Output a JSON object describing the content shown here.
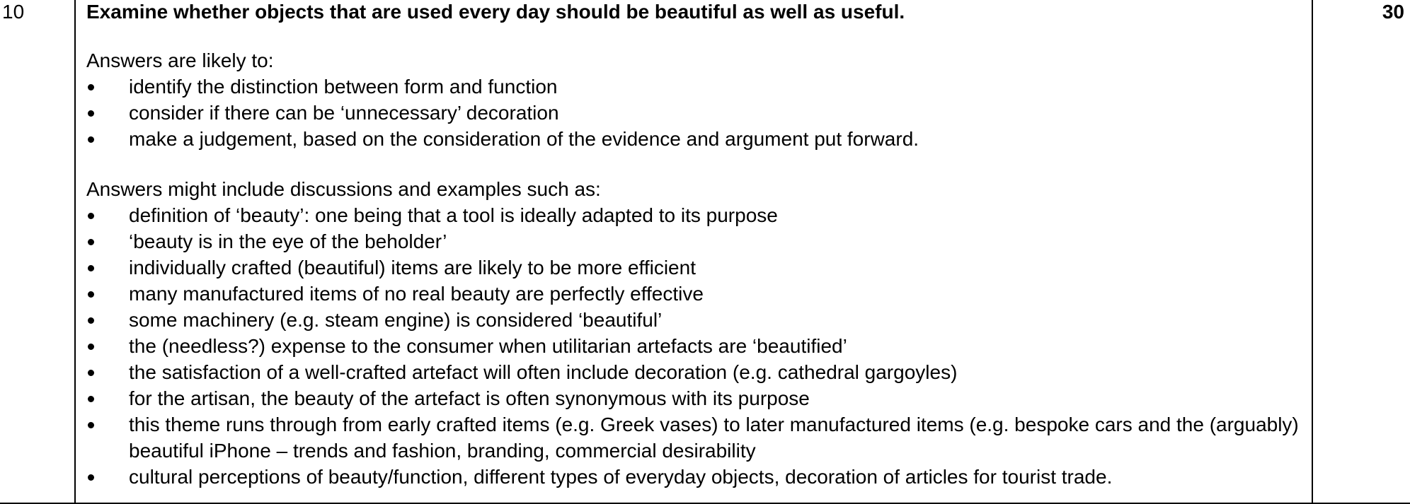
{
  "question_number": "10",
  "marks": "30",
  "question_text": "Examine whether objects that are used every day should be beautiful as well as useful.",
  "section1": {
    "intro": "Answers are likely to:",
    "items": [
      "identify the distinction between form and function",
      "consider if there can be ‘unnecessary’ decoration",
      "make a judgement, based on the consideration of the evidence and argument put forward."
    ]
  },
  "section2": {
    "intro": "Answers might include discussions and examples such as:",
    "items": [
      "definition of ‘beauty’: one being that a tool is ideally adapted to its purpose",
      "‘beauty is in the eye of the beholder’",
      "individually crafted (beautiful) items are likely to be more efficient",
      "many manufactured items of no real beauty are perfectly effective",
      "some machinery (e.g. steam engine) is considered ‘beautiful’",
      "the (needless?) expense to the consumer when utilitarian artefacts are ‘beautified’",
      "the satisfaction of a well-crafted artefact will often include decoration (e.g. cathedral gargoyles)",
      "for the artisan, the beauty of the artefact is often synonymous with its purpose",
      "this theme runs through from early crafted items (e.g. Greek vases) to later manufactured items (e.g. bespoke cars and the (arguably) beautiful iPhone – trends and fashion, branding, commercial desirability",
      "cultural perceptions of beauty/function, different types of everyday objects, decoration of articles for tourist trade."
    ]
  }
}
